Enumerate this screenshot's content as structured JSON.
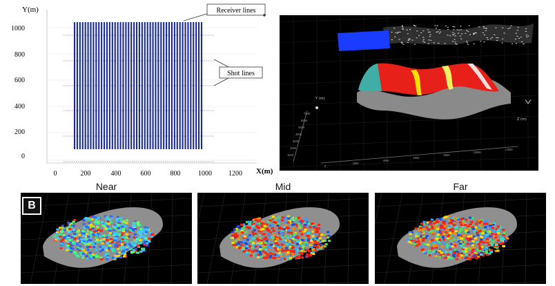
{
  "survey_layout": {
    "y_axis_label": "Y(m)",
    "x_axis_label": "X(m)",
    "y_ticks": [
      "1000",
      "800",
      "600",
      "400",
      "200",
      "0"
    ],
    "x_ticks": [
      "0",
      "200",
      "400",
      "600",
      "800",
      "1000",
      "1200"
    ],
    "annotations": {
      "receiver_lines": "Receiver  lines",
      "shot_lines": "Shot lines"
    },
    "receiver_line_color": "#1a2a9a"
  },
  "volume_view": {
    "axis_labels": {
      "y": "Y (m)",
      "z": "Z (m)"
    },
    "y_ticks": [
      "7000",
      "6000",
      "5000",
      "4000",
      "3000",
      "2000",
      "1000"
    ],
    "x_ticks": [
      "0",
      "2000",
      "4000",
      "6000",
      "8000",
      "10000",
      "12000"
    ]
  },
  "offset_views": {
    "badge": "B",
    "near_label": "Near",
    "mid_label": "Mid",
    "far_label": "Far"
  }
}
